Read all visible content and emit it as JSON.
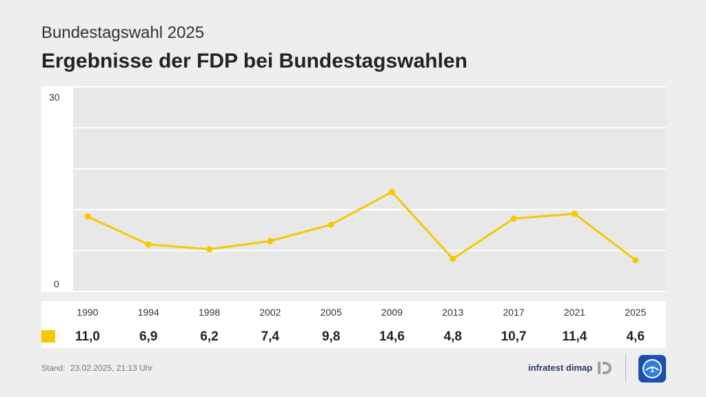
{
  "header": {
    "supertitle": "Bundestagswahl 2025",
    "title": "Ergebnisse der FDP bei Bundestagswahlen"
  },
  "chart_data": {
    "type": "line",
    "x": [
      "1990",
      "1994",
      "1998",
      "2002",
      "2005",
      "2009",
      "2013",
      "2017",
      "2021",
      "2025"
    ],
    "series": [
      {
        "values": [
          11.0,
          6.9,
          6.2,
          7.4,
          9.8,
          14.6,
          4.8,
          10.7,
          11.4,
          4.6
        ]
      }
    ],
    "value_labels": [
      "11,0",
      "6,9",
      "6,2",
      "7,4",
      "9,8",
      "14,6",
      "4,8",
      "10,7",
      "11,4",
      "4,6"
    ],
    "y_ticks": [
      "30",
      "0"
    ],
    "ylim": [
      0,
      30
    ],
    "grid": true,
    "color": "#f5c800"
  },
  "footer": {
    "stand_label": "Stand:",
    "stand_value": "23.02.2025, 21:13 Uhr",
    "source_logo": "infratest dimap",
    "broadcaster_logo": "tagesschau-icon"
  }
}
